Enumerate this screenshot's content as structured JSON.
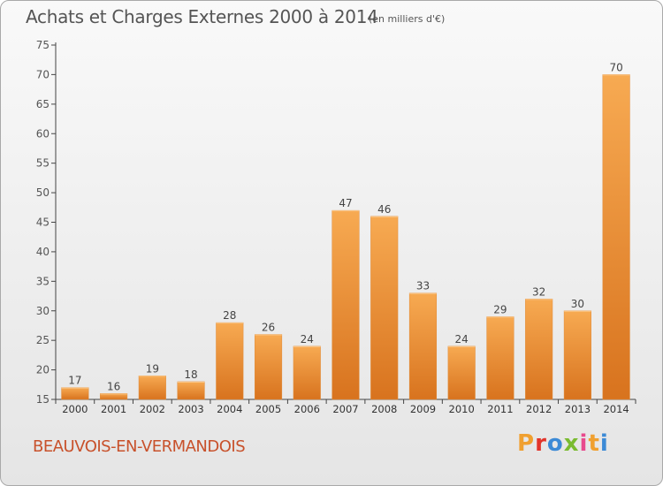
{
  "header": {
    "title": "Achats et Charges Externes 2000 à 2014",
    "unit": "(en milliers d'€)"
  },
  "footer": {
    "commune": "BEAUVOIS-EN-VERMANDOIS",
    "logo": {
      "text": "Proxiti",
      "colors": [
        "#f0a030",
        "#e2342a",
        "#3c8ad6",
        "#7abb30",
        "#e84a8d",
        "#f0a030",
        "#3c8ad6"
      ]
    }
  },
  "colors": {
    "bar_light": "#f7aa52",
    "bar_dark": "#d8731e",
    "axis": "#444444",
    "grid_tick": "#555555"
  },
  "chart_data": {
    "type": "bar",
    "title": "Achats et Charges Externes 2000 à 2014",
    "subtitle": "(en milliers d'€)",
    "categories": [
      "2000",
      "2001",
      "2002",
      "2003",
      "2004",
      "2005",
      "2006",
      "2007",
      "2008",
      "2009",
      "2010",
      "2011",
      "2012",
      "2013",
      "2014"
    ],
    "values": [
      17,
      16,
      19,
      18,
      28,
      26,
      24,
      47,
      46,
      33,
      24,
      29,
      32,
      30,
      70
    ],
    "ylim": [
      15,
      75
    ],
    "yticks": [
      15,
      20,
      25,
      30,
      35,
      40,
      45,
      50,
      55,
      60,
      65,
      70,
      75
    ],
    "xlabel": "",
    "ylabel": "",
    "grid": false,
    "data_labels": true
  }
}
